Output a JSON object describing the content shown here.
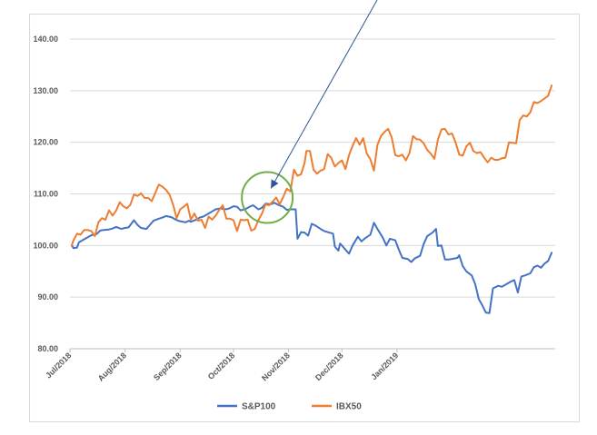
{
  "chart_data": {
    "type": "line",
    "title": "",
    "xlabel": "",
    "ylabel": "",
    "ylim": [
      80,
      140
    ],
    "y_ticks": [
      "80.00",
      "90.00",
      "100.00",
      "110.00",
      "120.00",
      "130.00",
      "140.00"
    ],
    "x_ticks": [
      "Jul/2018",
      "Aug/2018",
      "Sep/2018",
      "Oct/2018",
      "Nov/2018",
      "Dec/2018",
      "Jan/2019"
    ],
    "grid": "horizontal",
    "legend_position": "bottom",
    "series": [
      {
        "name": "S&P100",
        "color": "#4472C4",
        "points": [
          [
            "2018-07-02",
            100.0
          ],
          [
            "2018-07-03",
            99.5
          ],
          [
            "2018-07-05",
            99.6
          ],
          [
            "2018-07-06",
            100.6
          ],
          [
            "2018-07-09",
            101.2
          ],
          [
            "2018-07-11",
            101.6
          ],
          [
            "2018-07-13",
            102.0
          ],
          [
            "2018-07-16",
            102.2
          ],
          [
            "2018-07-18",
            102.9
          ],
          [
            "2018-07-20",
            103.0
          ],
          [
            "2018-07-23",
            103.1
          ],
          [
            "2018-07-25",
            103.3
          ],
          [
            "2018-07-27",
            103.6
          ],
          [
            "2018-07-30",
            103.2
          ],
          [
            "2018-08-01",
            103.4
          ],
          [
            "2018-08-03",
            103.5
          ],
          [
            "2018-08-06",
            104.9
          ],
          [
            "2018-08-08",
            104.0
          ],
          [
            "2018-08-10",
            103.4
          ],
          [
            "2018-08-13",
            103.2
          ],
          [
            "2018-08-15",
            104.0
          ],
          [
            "2018-08-17",
            104.8
          ],
          [
            "2018-08-20",
            105.2
          ],
          [
            "2018-08-22",
            105.4
          ],
          [
            "2018-08-24",
            105.7
          ],
          [
            "2018-08-27",
            105.5
          ],
          [
            "2018-08-29",
            105.1
          ],
          [
            "2018-08-31",
            104.8
          ],
          [
            "2018-09-04",
            104.5
          ],
          [
            "2018-09-06",
            104.8
          ],
          [
            "2018-09-07",
            104.6
          ],
          [
            "2018-09-10",
            105.0
          ],
          [
            "2018-09-12",
            105.4
          ],
          [
            "2018-09-14",
            105.6
          ],
          [
            "2018-09-17",
            106.2
          ],
          [
            "2018-09-19",
            106.6
          ],
          [
            "2018-09-21",
            107.0
          ],
          [
            "2018-09-24",
            107.2
          ],
          [
            "2018-09-26",
            107.0
          ],
          [
            "2018-09-28",
            107.1
          ],
          [
            "2018-10-01",
            107.6
          ],
          [
            "2018-10-03",
            107.5
          ],
          [
            "2018-10-05",
            106.8
          ],
          [
            "2018-10-08",
            107.1
          ],
          [
            "2018-10-10",
            107.5
          ],
          [
            "2018-10-12",
            107.8
          ],
          [
            "2018-10-15",
            107.0
          ],
          [
            "2018-10-17",
            107.3
          ],
          [
            "2018-10-19",
            108.1
          ],
          [
            "2018-10-22",
            108.0
          ],
          [
            "2018-10-24",
            108.3
          ],
          [
            "2018-10-26",
            107.9
          ],
          [
            "2018-10-29",
            107.5
          ],
          [
            "2018-10-31",
            106.9
          ],
          [
            "2018-11-02",
            107.0
          ],
          [
            "2018-11-05",
            107.0
          ],
          [
            "2018-11-06",
            101.3
          ],
          [
            "2018-11-08",
            102.6
          ],
          [
            "2018-11-10",
            102.5
          ],
          [
            "2018-11-12",
            101.9
          ],
          [
            "2018-11-14",
            104.2
          ],
          [
            "2018-11-16",
            103.9
          ],
          [
            "2018-11-19",
            103.2
          ],
          [
            "2018-11-21",
            102.8
          ],
          [
            "2018-11-23",
            102.6
          ],
          [
            "2018-11-26",
            102.3
          ],
          [
            "2018-11-27",
            99.8
          ],
          [
            "2018-11-29",
            99.0
          ],
          [
            "2018-11-30",
            100.4
          ],
          [
            "2018-12-03",
            99.2
          ],
          [
            "2018-12-05",
            98.4
          ],
          [
            "2018-12-07",
            100.0
          ],
          [
            "2018-12-10",
            101.7
          ],
          [
            "2018-12-12",
            100.8
          ],
          [
            "2018-12-14",
            101.4
          ],
          [
            "2018-12-17",
            102.1
          ],
          [
            "2018-12-19",
            104.4
          ],
          [
            "2018-12-21",
            103.2
          ],
          [
            "2018-12-24",
            101.5
          ],
          [
            "2018-12-26",
            100.0
          ],
          [
            "2018-12-28",
            101.3
          ],
          [
            "2018-12-31",
            101.0
          ],
          [
            "2019-01-02",
            99.2
          ],
          [
            "2019-01-04",
            97.6
          ],
          [
            "2019-01-07",
            97.4
          ],
          [
            "2019-01-09",
            96.8
          ],
          [
            "2019-01-11",
            97.5
          ],
          [
            "2019-01-14",
            98.0
          ],
          [
            "2019-01-16",
            100.3
          ],
          [
            "2019-01-18",
            101.8
          ],
          [
            "2019-01-21",
            102.5
          ],
          [
            "2019-01-23",
            103.2
          ],
          [
            "2019-01-24",
            99.9
          ],
          [
            "2019-01-26",
            100.0
          ],
          [
            "2019-01-28",
            97.3
          ],
          [
            "2019-01-30",
            97.3
          ],
          [
            "2019-02-01",
            97.4
          ],
          [
            "2019-02-04",
            97.6
          ],
          [
            "2019-02-05",
            98.1
          ],
          [
            "2019-02-07",
            96.0
          ],
          [
            "2019-02-09",
            95.0
          ],
          [
            "2019-02-12",
            94.2
          ],
          [
            "2019-02-14",
            92.5
          ],
          [
            "2019-02-16",
            89.6
          ],
          [
            "2019-02-18",
            88.4
          ],
          [
            "2019-02-20",
            87.0
          ],
          [
            "2019-02-22",
            86.9
          ],
          [
            "2019-02-24",
            91.7
          ],
          [
            "2019-02-27",
            92.2
          ],
          [
            "2019-03-01",
            92.0
          ],
          [
            "2019-03-04",
            92.6
          ],
          [
            "2019-03-06",
            93.0
          ],
          [
            "2019-03-08",
            93.3
          ],
          [
            "2019-03-10",
            90.9
          ],
          [
            "2019-03-12",
            94.0
          ],
          [
            "2019-03-14",
            94.2
          ],
          [
            "2019-03-17",
            94.6
          ],
          [
            "2019-03-19",
            95.8
          ],
          [
            "2019-03-21",
            96.1
          ],
          [
            "2019-03-23",
            95.7
          ],
          [
            "2019-03-25",
            96.5
          ],
          [
            "2019-03-27",
            97.0
          ],
          [
            "2019-03-29",
            98.6
          ]
        ]
      },
      {
        "name": "IBX50",
        "color": "#ED7D31",
        "points": [
          [
            "2018-07-02",
            100.0
          ],
          [
            "2018-07-03",
            101.0
          ],
          [
            "2018-07-05",
            102.3
          ],
          [
            "2018-07-07",
            102.1
          ],
          [
            "2018-07-09",
            103.0
          ],
          [
            "2018-07-11",
            103.0
          ],
          [
            "2018-07-13",
            102.8
          ],
          [
            "2018-07-15",
            101.8
          ],
          [
            "2018-07-17",
            104.5
          ],
          [
            "2018-07-19",
            105.3
          ],
          [
            "2018-07-21",
            105.0
          ],
          [
            "2018-07-23",
            106.8
          ],
          [
            "2018-07-25",
            105.8
          ],
          [
            "2018-07-27",
            106.8
          ],
          [
            "2018-07-29",
            108.4
          ],
          [
            "2018-07-31",
            107.6
          ],
          [
            "2018-08-02",
            107.2
          ],
          [
            "2018-08-04",
            107.9
          ],
          [
            "2018-08-06",
            109.9
          ],
          [
            "2018-08-08",
            109.6
          ],
          [
            "2018-08-10",
            110.1
          ],
          [
            "2018-08-12",
            109.2
          ],
          [
            "2018-08-14",
            109.2
          ],
          [
            "2018-08-16",
            108.6
          ],
          [
            "2018-08-18",
            110.2
          ],
          [
            "2018-08-20",
            111.8
          ],
          [
            "2018-08-22",
            111.4
          ],
          [
            "2018-08-24",
            110.8
          ],
          [
            "2018-08-26",
            109.9
          ],
          [
            "2018-08-28",
            107.9
          ],
          [
            "2018-08-30",
            105.3
          ],
          [
            "2018-09-01",
            107.0
          ],
          [
            "2018-09-03",
            107.5
          ],
          [
            "2018-09-05",
            108.1
          ],
          [
            "2018-09-07",
            105.0
          ],
          [
            "2018-09-09",
            106.2
          ],
          [
            "2018-09-11",
            104.8
          ],
          [
            "2018-09-13",
            105.0
          ],
          [
            "2018-09-15",
            103.4
          ],
          [
            "2018-09-17",
            105.6
          ],
          [
            "2018-09-19",
            105.0
          ],
          [
            "2018-09-21",
            105.8
          ],
          [
            "2018-09-23",
            106.9
          ],
          [
            "2018-09-25",
            107.8
          ],
          [
            "2018-09-27",
            105.2
          ],
          [
            "2018-09-29",
            105.2
          ],
          [
            "2018-10-01",
            104.9
          ],
          [
            "2018-10-03",
            102.8
          ],
          [
            "2018-10-05",
            105.0
          ],
          [
            "2018-10-07",
            104.9
          ],
          [
            "2018-10-09",
            105.0
          ],
          [
            "2018-10-11",
            102.9
          ],
          [
            "2018-10-13",
            103.2
          ],
          [
            "2018-10-15",
            104.9
          ],
          [
            "2018-10-17",
            106.2
          ],
          [
            "2018-10-19",
            108.0
          ],
          [
            "2018-10-21",
            107.8
          ],
          [
            "2018-10-23",
            108.5
          ],
          [
            "2018-10-25",
            109.3
          ],
          [
            "2018-10-27",
            108.0
          ],
          [
            "2018-10-29",
            109.4
          ],
          [
            "2018-10-31",
            111.0
          ],
          [
            "2018-11-02",
            110.5
          ],
          [
            "2018-11-04",
            114.7
          ],
          [
            "2018-11-06",
            113.5
          ],
          [
            "2018-11-08",
            113.8
          ],
          [
            "2018-11-10",
            116.0
          ],
          [
            "2018-11-11",
            118.3
          ],
          [
            "2018-11-13",
            118.3
          ],
          [
            "2018-11-15",
            114.7
          ],
          [
            "2018-11-17",
            113.9
          ],
          [
            "2018-11-19",
            114.5
          ],
          [
            "2018-11-21",
            114.8
          ],
          [
            "2018-11-23",
            117.7
          ],
          [
            "2018-11-25",
            117.0
          ],
          [
            "2018-11-27",
            115.3
          ],
          [
            "2018-11-29",
            116.0
          ],
          [
            "2018-12-01",
            116.5
          ],
          [
            "2018-12-03",
            114.8
          ],
          [
            "2018-12-05",
            117.5
          ],
          [
            "2018-12-07",
            119.3
          ],
          [
            "2018-12-09",
            120.8
          ],
          [
            "2018-12-11",
            119.5
          ],
          [
            "2018-12-13",
            120.8
          ],
          [
            "2018-12-15",
            117.8
          ],
          [
            "2018-12-17",
            116.7
          ],
          [
            "2018-12-19",
            114.5
          ],
          [
            "2018-12-21",
            119.5
          ],
          [
            "2018-12-23",
            121.2
          ],
          [
            "2018-12-25",
            122.0
          ],
          [
            "2018-12-27",
            122.6
          ],
          [
            "2018-12-29",
            121.0
          ],
          [
            "2018-12-31",
            117.5
          ],
          [
            "2019-01-02",
            117.3
          ],
          [
            "2019-01-04",
            117.6
          ],
          [
            "2019-01-06",
            116.5
          ],
          [
            "2019-01-08",
            117.9
          ],
          [
            "2019-01-10",
            121.2
          ],
          [
            "2019-01-12",
            120.6
          ],
          [
            "2019-01-14",
            120.5
          ],
          [
            "2019-01-16",
            119.8
          ],
          [
            "2019-01-18",
            118.5
          ],
          [
            "2019-01-20",
            117.8
          ],
          [
            "2019-01-22",
            116.8
          ],
          [
            "2019-01-24",
            120.5
          ],
          [
            "2019-01-26",
            122.5
          ],
          [
            "2019-01-28",
            122.6
          ],
          [
            "2019-01-30",
            121.5
          ],
          [
            "2019-02-01",
            121.7
          ],
          [
            "2019-02-03",
            119.9
          ],
          [
            "2019-02-05",
            117.6
          ],
          [
            "2019-02-07",
            117.4
          ],
          [
            "2019-02-09",
            119.2
          ],
          [
            "2019-02-11",
            119.9
          ],
          [
            "2019-02-13",
            118.3
          ],
          [
            "2019-02-15",
            117.9
          ],
          [
            "2019-02-17",
            118.1
          ],
          [
            "2019-02-19",
            117.0
          ],
          [
            "2019-02-21",
            116.1
          ],
          [
            "2019-02-23",
            117.0
          ],
          [
            "2019-02-25",
            116.6
          ],
          [
            "2019-02-27",
            116.6
          ],
          [
            "2019-03-01",
            116.9
          ],
          [
            "2019-03-03",
            117.0
          ],
          [
            "2019-03-05",
            120.0
          ],
          [
            "2019-03-07",
            119.9
          ],
          [
            "2019-03-09",
            119.8
          ],
          [
            "2019-03-11",
            124.3
          ],
          [
            "2019-03-13",
            125.2
          ],
          [
            "2019-03-15",
            125.0
          ],
          [
            "2019-03-17",
            125.8
          ],
          [
            "2019-03-19",
            127.8
          ],
          [
            "2019-03-21",
            127.6
          ],
          [
            "2019-03-23",
            128.0
          ],
          [
            "2019-03-25",
            128.5
          ],
          [
            "2019-03-27",
            129.0
          ],
          [
            "2019-03-29",
            131.0
          ]
        ]
      }
    ],
    "annotations": [
      {
        "type": "circle",
        "color": "#70AD47"
      },
      {
        "type": "arrow",
        "color": "#2E5597"
      }
    ]
  }
}
